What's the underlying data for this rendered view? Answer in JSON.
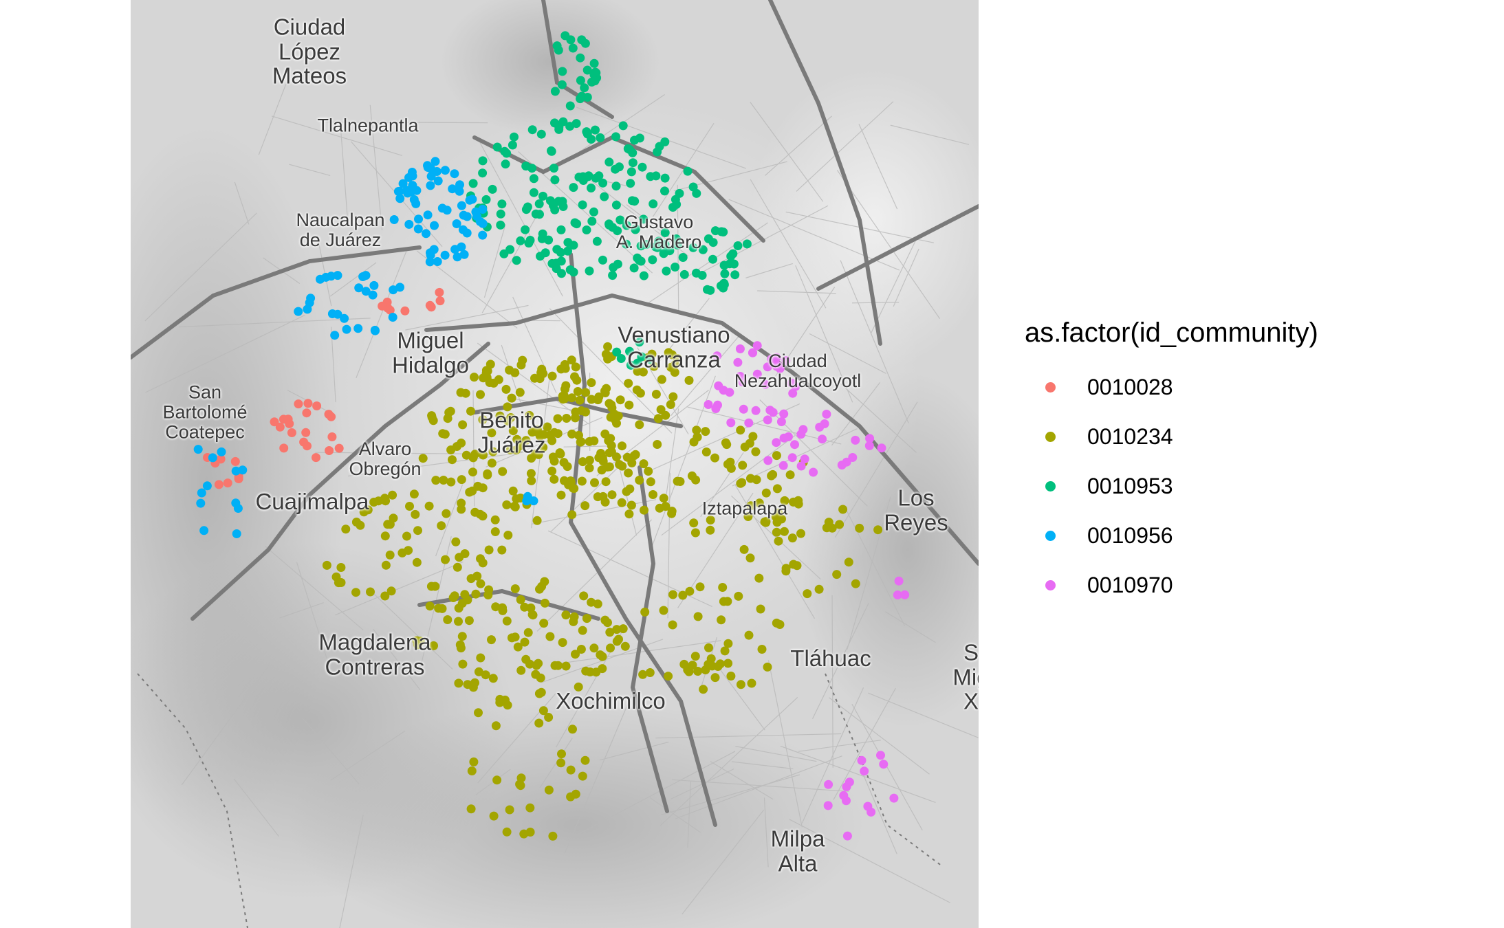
{
  "legend": {
    "title": "as.factor(id_community)",
    "items": [
      {
        "label": "0010028",
        "color": "#F8766D"
      },
      {
        "label": "0010234",
        "color": "#A3A500"
      },
      {
        "label": "0010953",
        "color": "#00BF7D"
      },
      {
        "label": "0010956",
        "color": "#00B0F6"
      },
      {
        "label": "0010970",
        "color": "#E76BF3"
      }
    ]
  },
  "places": [
    {
      "name": "Ciudad\nLópez\nMateos",
      "size": "large"
    },
    {
      "name": "Tlalnepantla",
      "size": "small"
    },
    {
      "name": "Naucalpan\nde Juárez",
      "size": "small"
    },
    {
      "name": "Gustavo\nA. Madero",
      "size": "small"
    },
    {
      "name": "Venustiano\nCarranza",
      "size": "large"
    },
    {
      "name": "Miguel\nHidalgo",
      "size": "large"
    },
    {
      "name": "Ciudad\nNezahualcoyotl",
      "size": "small"
    },
    {
      "name": "San\nBartolomé\nCoatepec",
      "size": "small"
    },
    {
      "name": "Alvaro\nObregón",
      "size": "small"
    },
    {
      "name": "Benito\nJuárez",
      "size": "large"
    },
    {
      "name": "Cuajimalpa",
      "size": "large"
    },
    {
      "name": "Iztapalapa",
      "size": "small"
    },
    {
      "name": "Los\nReyes",
      "size": "large"
    },
    {
      "name": "Magdalena\nContreras",
      "size": "large"
    },
    {
      "name": "Tláhuac",
      "size": "large"
    },
    {
      "name": "S\nMig\nX",
      "size": "large"
    },
    {
      "name": "Xochimilco",
      "size": "large"
    },
    {
      "name": "Milpa\nAlta",
      "size": "large"
    }
  ]
}
